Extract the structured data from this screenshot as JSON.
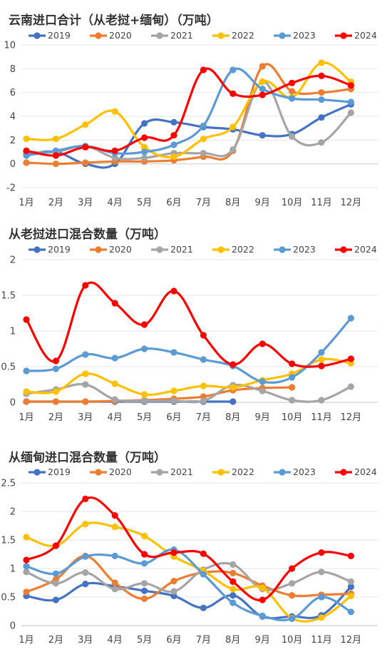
{
  "chart_data": [
    {
      "type": "line",
      "title": "云南进口合计（从老挝+缅甸）（万吨）",
      "categories": [
        "1月",
        "2月",
        "3月",
        "4月",
        "5月",
        "6月",
        "7月",
        "8月",
        "9月",
        "10月",
        "11月",
        "12月"
      ],
      "ylim": [
        -2,
        10
      ],
      "yticks": [
        -2,
        0,
        2,
        4,
        6,
        8,
        10
      ],
      "ytick_labels": [
        "-2",
        "0",
        "2",
        "4",
        "6",
        "8",
        "10"
      ],
      "legend_position": "top",
      "series": [
        {
          "name": "2019",
          "color": "#4472c4",
          "values": [
            0.8,
            1.0,
            0.0,
            0.0,
            3.4,
            3.5,
            3.1,
            2.9,
            2.4,
            2.5,
            3.9,
            5.0
          ]
        },
        {
          "name": "2020",
          "color": "#ed7d31",
          "values": [
            0.1,
            0.0,
            0.1,
            0.2,
            0.2,
            0.3,
            0.6,
            1.1,
            8.2,
            6.1,
            6.0,
            6.3
          ]
        },
        {
          "name": "2021",
          "color": "#a5a5a5",
          "values": [
            1.0,
            1.0,
            1.5,
            0.5,
            0.5,
            0.9,
            0.9,
            1.2,
            6.9,
            2.3,
            1.8,
            4.3
          ]
        },
        {
          "name": "2022",
          "color": "#ffc000",
          "values": [
            2.1,
            2.1,
            3.3,
            4.4,
            1.4,
            0.6,
            2.1,
            3.1,
            6.9,
            5.6,
            8.5,
            6.9
          ]
        },
        {
          "name": "2023",
          "color": "#5b9bd5",
          "values": [
            0.7,
            1.1,
            1.5,
            0.9,
            1.0,
            1.6,
            3.2,
            7.9,
            6.3,
            5.5,
            5.4,
            5.2
          ]
        },
        {
          "name": "2024",
          "color": "#ff0000",
          "values": [
            1.1,
            0.7,
            1.4,
            1.1,
            2.2,
            2.4,
            7.9,
            5.9,
            5.8,
            6.8,
            7.4,
            6.6
          ]
        }
      ]
    },
    {
      "type": "line",
      "title": "从老挝进口混合数量（万吨）",
      "categories": [
        "1月",
        "2月",
        "3月",
        "4月",
        "5月",
        "6月",
        "7月",
        "8月",
        "9月",
        "10月",
        "11月",
        "12月"
      ],
      "ylim": [
        0,
        2
      ],
      "yticks": [
        0,
        0.5,
        1,
        1.5,
        2
      ],
      "ytick_labels": [
        "0",
        "0.5",
        "1",
        "1.5",
        "2"
      ],
      "legend_position": "top",
      "series": [
        {
          "name": "2019",
          "color": "#4472c4",
          "values": [
            0.01,
            0.01,
            0.01,
            0.01,
            0.01,
            0.01,
            0.01,
            0.01,
            null,
            null,
            null,
            null
          ]
        },
        {
          "name": "2020",
          "color": "#ed7d31",
          "values": [
            0.01,
            0.01,
            0.01,
            0.02,
            0.03,
            0.05,
            0.08,
            0.17,
            0.2,
            0.21,
            null,
            null
          ]
        },
        {
          "name": "2021",
          "color": "#a5a5a5",
          "values": [
            0.12,
            0.18,
            0.25,
            0.04,
            0.02,
            0.02,
            0.02,
            0.24,
            0.16,
            0.03,
            0.03,
            0.22
          ]
        },
        {
          "name": "2022",
          "color": "#ffc000",
          "values": [
            0.15,
            0.15,
            0.4,
            0.26,
            0.11,
            0.16,
            0.23,
            0.21,
            0.31,
            0.4,
            0.6,
            0.55
          ]
        },
        {
          "name": "2023",
          "color": "#5b9bd5",
          "values": [
            0.44,
            0.47,
            0.67,
            0.62,
            0.75,
            0.7,
            0.6,
            0.51,
            0.29,
            0.35,
            0.7,
            1.18
          ]
        },
        {
          "name": "2024",
          "color": "#ff0000",
          "values": [
            1.16,
            0.58,
            1.64,
            1.39,
            1.09,
            1.56,
            0.94,
            0.53,
            0.82,
            0.54,
            0.51,
            0.61
          ]
        }
      ]
    },
    {
      "type": "line",
      "title": "从缅甸进口混合数量（万吨）",
      "categories": [
        "1月",
        "2月",
        "3月",
        "4月",
        "5月",
        "6月",
        "7月",
        "8月",
        "9月",
        "10月",
        "11月",
        "12月"
      ],
      "ylim": [
        0,
        2.5
      ],
      "yticks": [
        0,
        0.5,
        1,
        1.5,
        2,
        2.5
      ],
      "ytick_labels": [
        "0",
        "0.5",
        "1",
        "1.5",
        "2",
        "2.5"
      ],
      "legend_position": "top",
      "series": [
        {
          "name": "2019",
          "color": "#4472c4",
          "values": [
            0.52,
            0.45,
            0.73,
            0.69,
            0.61,
            0.52,
            0.31,
            0.53,
            0.16,
            0.16,
            0.18,
            0.68
          ]
        },
        {
          "name": "2020",
          "color": "#ed7d31",
          "values": [
            0.59,
            0.81,
            1.22,
            0.75,
            0.47,
            0.78,
            0.93,
            0.92,
            0.7,
            0.53,
            0.54,
            0.56
          ]
        },
        {
          "name": "2021",
          "color": "#a5a5a5",
          "values": [
            0.94,
            0.74,
            0.93,
            0.64,
            0.74,
            0.6,
            0.98,
            1.07,
            0.64,
            0.74,
            0.94,
            0.77
          ]
        },
        {
          "name": "2022",
          "color": "#ffc000",
          "values": [
            1.55,
            1.4,
            1.78,
            1.73,
            1.57,
            1.21,
            0.96,
            0.64,
            0.66,
            0.13,
            0.14,
            0.52
          ]
        },
        {
          "name": "2023",
          "color": "#5b9bd5",
          "values": [
            1.04,
            0.91,
            1.21,
            1.22,
            1.09,
            1.33,
            0.9,
            0.4,
            0.17,
            0.12,
            0.5,
            0.24
          ]
        },
        {
          "name": "2024",
          "color": "#ff0000",
          "values": [
            1.15,
            1.4,
            2.22,
            1.93,
            1.25,
            1.28,
            1.26,
            0.77,
            0.45,
            1.0,
            1.28,
            1.22
          ]
        }
      ]
    }
  ]
}
